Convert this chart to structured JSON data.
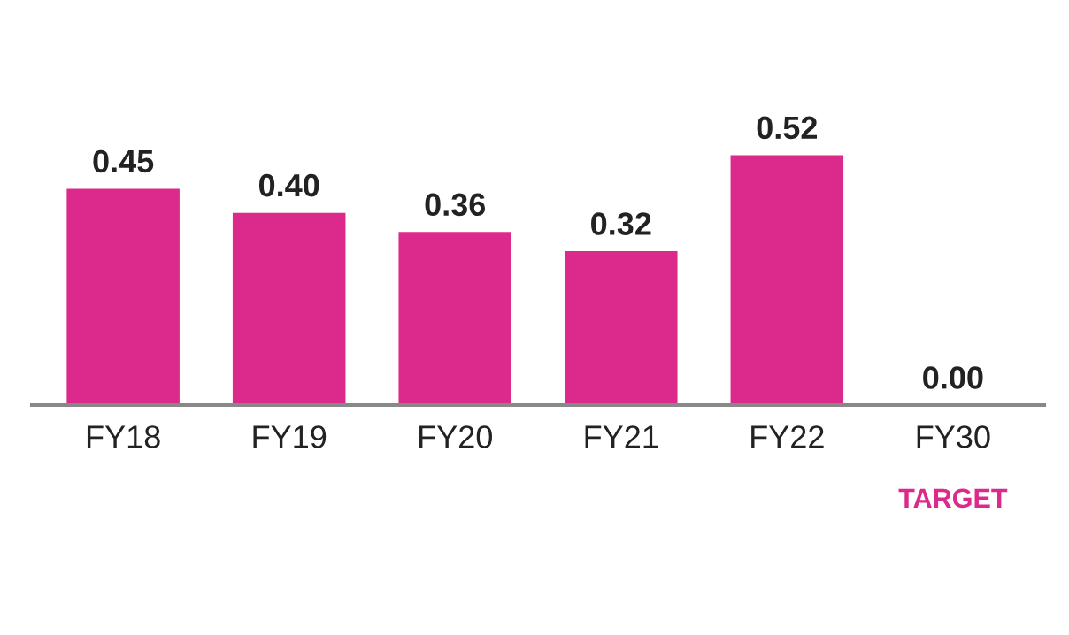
{
  "chart_data": {
    "type": "bar",
    "categories": [
      "FY18",
      "FY19",
      "FY20",
      "FY21",
      "FY22",
      "FY30"
    ],
    "values": [
      0.45,
      0.4,
      0.36,
      0.32,
      0.52,
      0.0
    ],
    "value_labels": [
      "0.45",
      "0.40",
      "0.36",
      "0.32",
      "0.52",
      "0.00"
    ],
    "color": "#dc2a8c",
    "grid": false,
    "legend": false,
    "annotations": [
      "TARGET"
    ]
  }
}
